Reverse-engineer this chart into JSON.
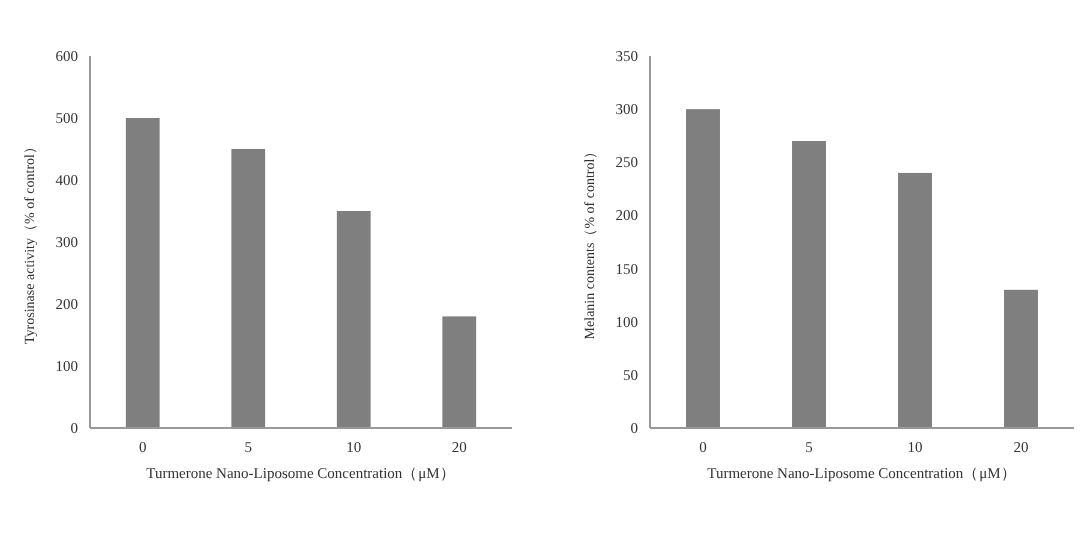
{
  "chart_data": [
    {
      "type": "bar",
      "xlabel": "Turmerone Nano-Liposome Concentration（μM）",
      "ylabel": "Tyrosinase activity（% of control）",
      "categories": [
        "0",
        "5",
        "10",
        "20"
      ],
      "values": [
        500,
        450,
        350,
        180
      ],
      "color": "#7f7f7f",
      "ylim": [
        0,
        600
      ],
      "yticks": [
        0,
        100,
        200,
        300,
        400,
        500,
        600
      ]
    },
    {
      "type": "bar",
      "xlabel": "Turmerone Nano-Liposome Concentration（μM）",
      "ylabel": "Melanin contents（% of control）",
      "categories": [
        "0",
        "5",
        "10",
        "20"
      ],
      "values": [
        300,
        270,
        240,
        130
      ],
      "color": "#7f7f7f",
      "ylim": [
        0,
        350
      ],
      "yticks": [
        0,
        50,
        100,
        150,
        200,
        250,
        300,
        350
      ]
    }
  ]
}
